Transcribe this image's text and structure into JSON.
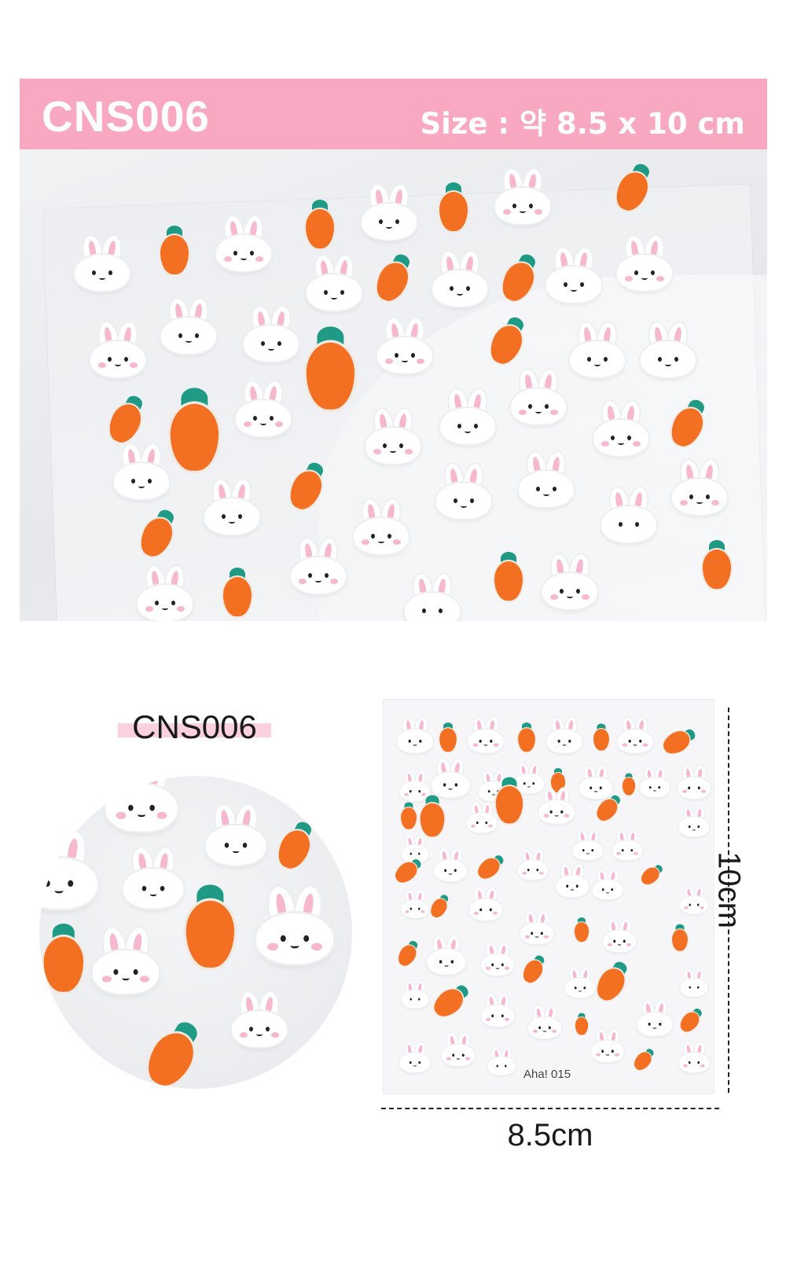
{
  "banner": {
    "code": "CNS006",
    "size": "Size : 약 8.5 x 10 cm"
  },
  "product_label": "CNS006",
  "sheet": {
    "label": "Aha! 015"
  },
  "dimensions": {
    "width": "8.5cm",
    "height": "10cm"
  },
  "colors": {
    "banner_pink": "#f9a8c2",
    "label_highlight": "#fbd1de",
    "carrot_orange": "#f36f21",
    "carrot_leaf": "#1f9a84",
    "bunny_cheek": "#f7b8cd"
  }
}
